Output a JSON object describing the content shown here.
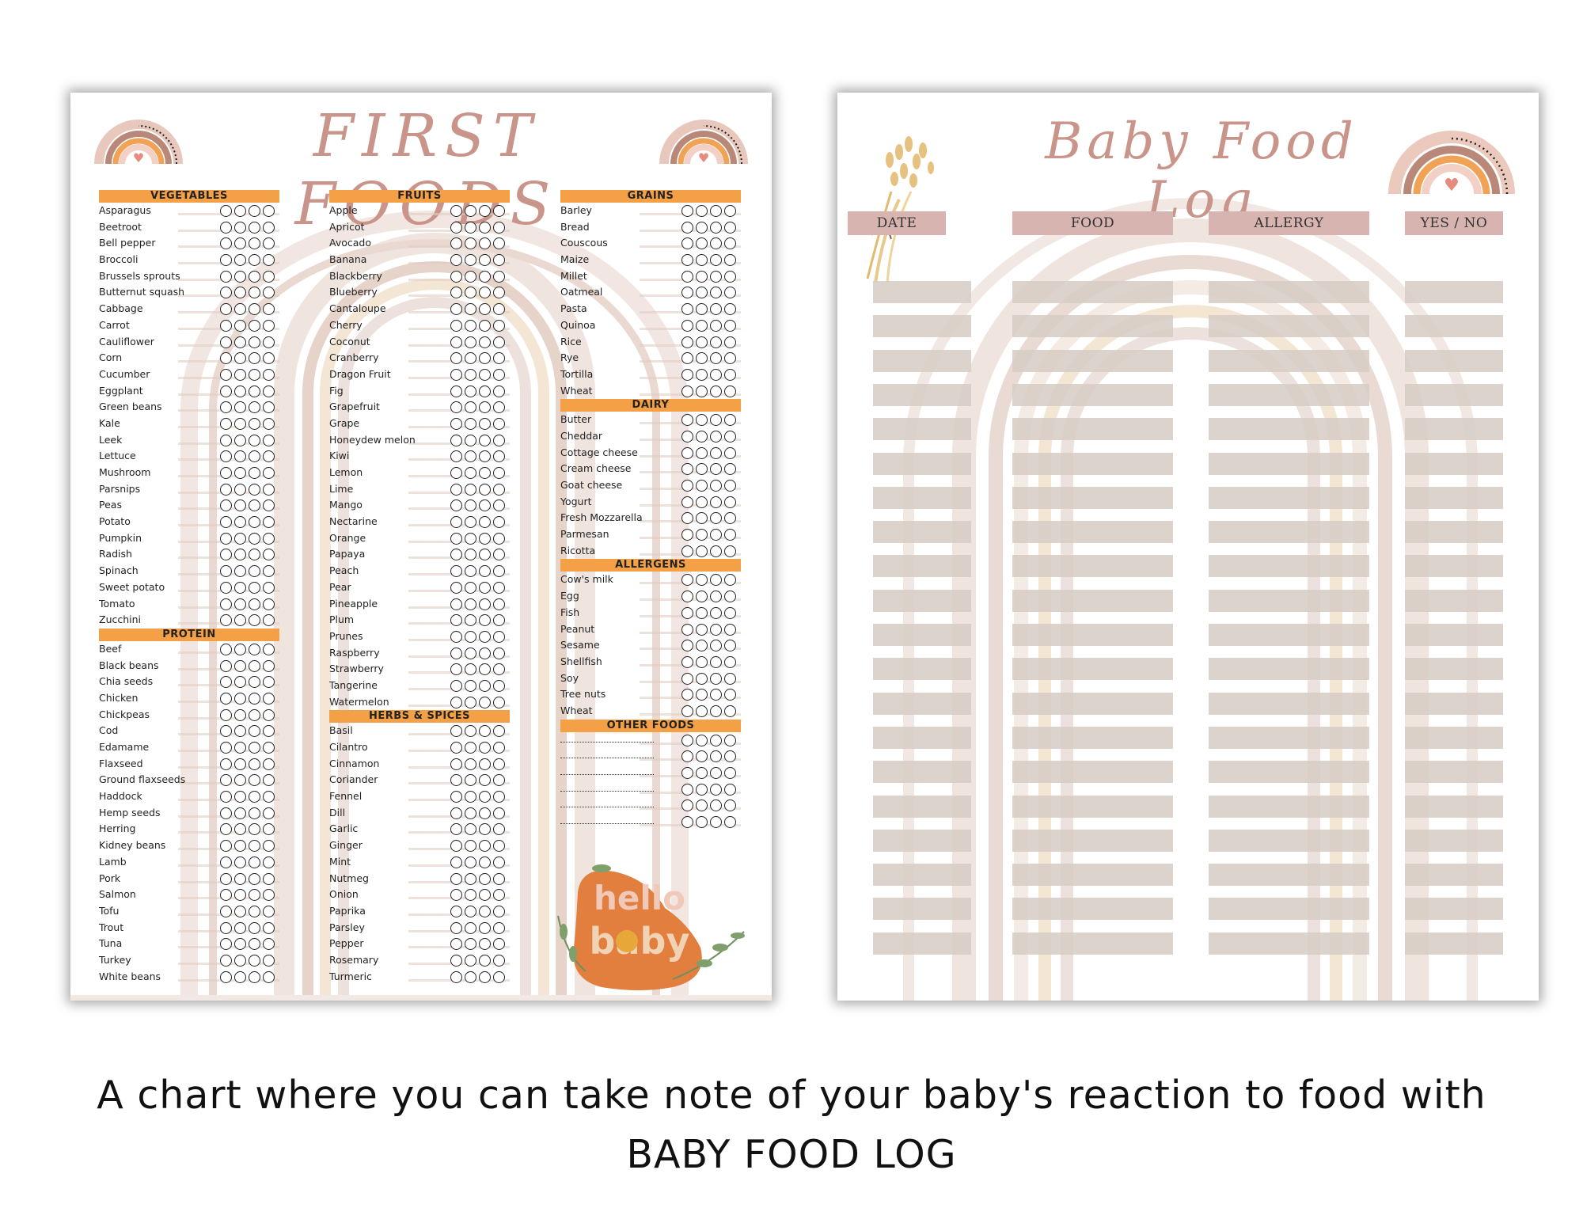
{
  "first_foods": {
    "title": "FIRST FOODS",
    "columns": [
      {
        "sections": [
          {
            "header": "VEGETABLES",
            "items": [
              "Asparagus",
              "Beetroot",
              "Bell pepper",
              "Broccoli",
              "Brussels sprouts",
              "Butternut squash",
              "Cabbage",
              "Carrot",
              "Cauliflower",
              "Corn",
              "Cucumber",
              "Eggplant",
              "Green beans",
              "Kale",
              "Leek",
              "Lettuce",
              "Mushroom",
              "Parsnips",
              "Peas",
              "Potato",
              "Pumpkin",
              "Radish",
              "Spinach",
              "Sweet potato",
              "Tomato",
              "Zucchini"
            ]
          },
          {
            "header": "PROTEIN",
            "items": [
              "Beef",
              "Black beans",
              "Chia seeds",
              "Chicken",
              "Chickpeas",
              "Cod",
              "Edamame",
              "Flaxseed",
              "Ground flaxseeds",
              "Haddock",
              "Hemp seeds",
              "Herring",
              "Kidney beans",
              "Lamb",
              "Pork",
              "Salmon",
              "Tofu",
              "Trout",
              "Tuna",
              "Turkey",
              "White beans"
            ]
          }
        ]
      },
      {
        "sections": [
          {
            "header": "FRUITS",
            "items": [
              "Apple",
              "Apricot",
              "Avocado",
              "Banana",
              "Blackberry",
              "Blueberry",
              "Cantaloupe",
              "Cherry",
              "Coconut",
              "Cranberry",
              "Dragon Fruit",
              "Fig",
              "Grapefruit",
              "Grape",
              "Honeydew melon",
              "Kiwi",
              "Lemon",
              "Lime",
              "Mango",
              "Nectarine",
              "Orange",
              "Papaya",
              "Peach",
              "Pear",
              "Pineapple",
              "Plum",
              "Prunes",
              "Raspberry",
              "Strawberry",
              "Tangerine",
              "Watermelon"
            ]
          },
          {
            "header": "HERBS & SPICES",
            "items": [
              "Basil",
              "Cilantro",
              "Cinnamon",
              "Coriander",
              "Fennel",
              "Dill",
              "Garlic",
              "Ginger",
              "Mint",
              "Nutmeg",
              "Onion",
              "Paprika",
              "Parsley",
              "Pepper",
              "Rosemary",
              "Turmeric"
            ]
          }
        ]
      },
      {
        "sections": [
          {
            "header": "GRAINS",
            "items": [
              "Barley",
              "Bread",
              "Couscous",
              "Maize",
              "Millet",
              "Oatmeal",
              "Pasta",
              "Quinoa",
              "Rice",
              "Rye",
              "Tortilla",
              "Wheat"
            ]
          },
          {
            "header": "DAIRY",
            "items": [
              "Butter",
              "Cheddar",
              "Cottage cheese",
              "Cream cheese",
              "Goat cheese",
              "Yogurt",
              "Fresh Mozzarella",
              "Parmesan",
              "Ricotta"
            ]
          },
          {
            "header": "ALLERGENS",
            "items": [
              "Cow's milk",
              "Egg",
              "Fish",
              "Peanut",
              "Sesame",
              "Shellfish",
              "Soy",
              "Tree nuts",
              "Wheat"
            ]
          },
          {
            "header": "OTHER FOODS",
            "items": [
              "",
              "",
              "",
              "",
              "",
              ""
            ]
          }
        ]
      }
    ],
    "badge": {
      "word1": "hello",
      "word2": "baby"
    }
  },
  "food_log": {
    "title": "Baby Food Log",
    "headers": [
      "DATE",
      "FOOD",
      "ALLERGY",
      "YES / NO"
    ],
    "row_count": 20
  },
  "caption": {
    "line1": "A chart where you can take note of your baby's reaction to food with",
    "line2": "BABY FOOD LOG"
  },
  "colors": {
    "accent": "#f4a046",
    "title": "#c9958a",
    "header_pink": "#d8b4b1",
    "row_grey": "#d7cdc5"
  }
}
